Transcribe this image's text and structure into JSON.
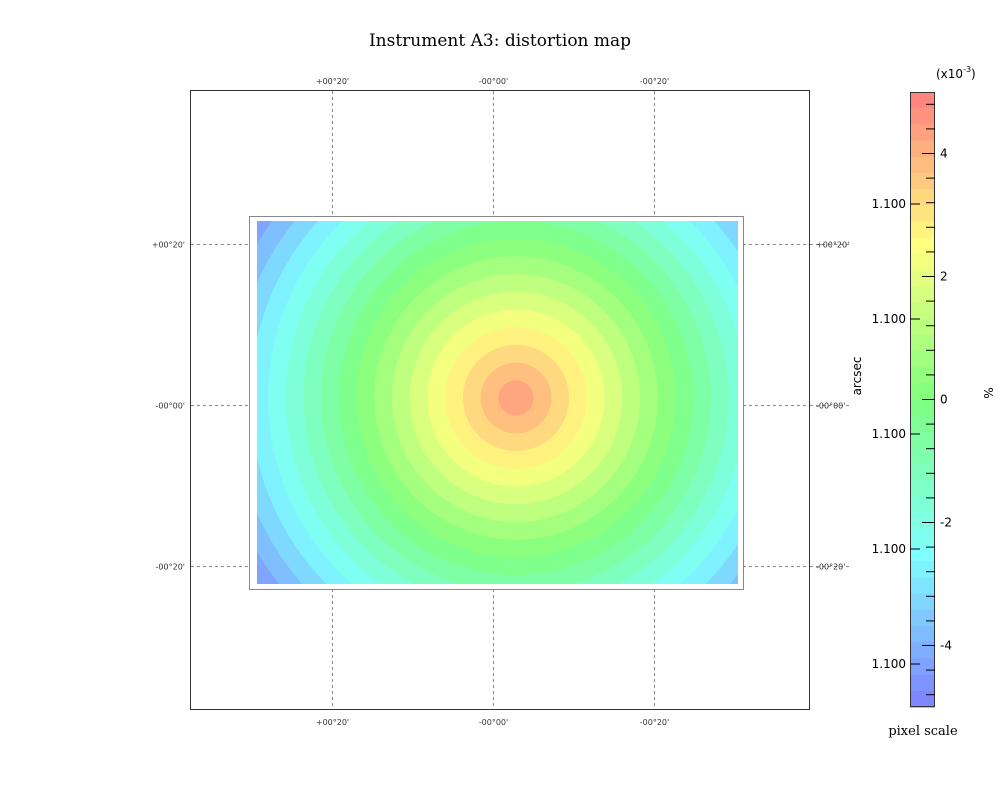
{
  "chart_data": {
    "type": "heatmap",
    "title": "Instrument A3: distortion map",
    "axes": {
      "top_ticks": [
        "+00°20'",
        "-00°00'",
        "-00°20'"
      ],
      "bottom_ticks": [
        "+00°20'",
        "-00°00'",
        "-00°20'"
      ],
      "left_ticks": [
        "+00°20'",
        "-00°00'",
        "-00°20'"
      ],
      "right_ticks": [
        "+00°20'",
        "-00°00'",
        "-00°20'"
      ],
      "grid": true
    },
    "colorbar": {
      "label": "pixel scale",
      "right_unit": "%",
      "left_unit": "arcsec",
      "multiplier": "(x10",
      "multiplier_exp": "-3",
      "multiplier_close": ")",
      "range": [
        -5,
        5
      ],
      "right_ticks": [
        {
          "value": 4,
          "label": "4"
        },
        {
          "value": 2,
          "label": "2"
        },
        {
          "value": 0,
          "label": "0"
        },
        {
          "value": -2,
          "label": "-2"
        },
        {
          "value": -4,
          "label": "-4"
        }
      ],
      "left_ticks": [
        "1.100",
        "1.100",
        "1.100",
        "1.100",
        "1.100"
      ],
      "colors": [
        "#7f7fff",
        "#7fffff",
        "#7fff7f",
        "#ffff7f",
        "#ff7f7f"
      ]
    },
    "field": {
      "model": "radial",
      "center_value": 4.5,
      "corner_value": -4.5,
      "levels": 18
    }
  }
}
